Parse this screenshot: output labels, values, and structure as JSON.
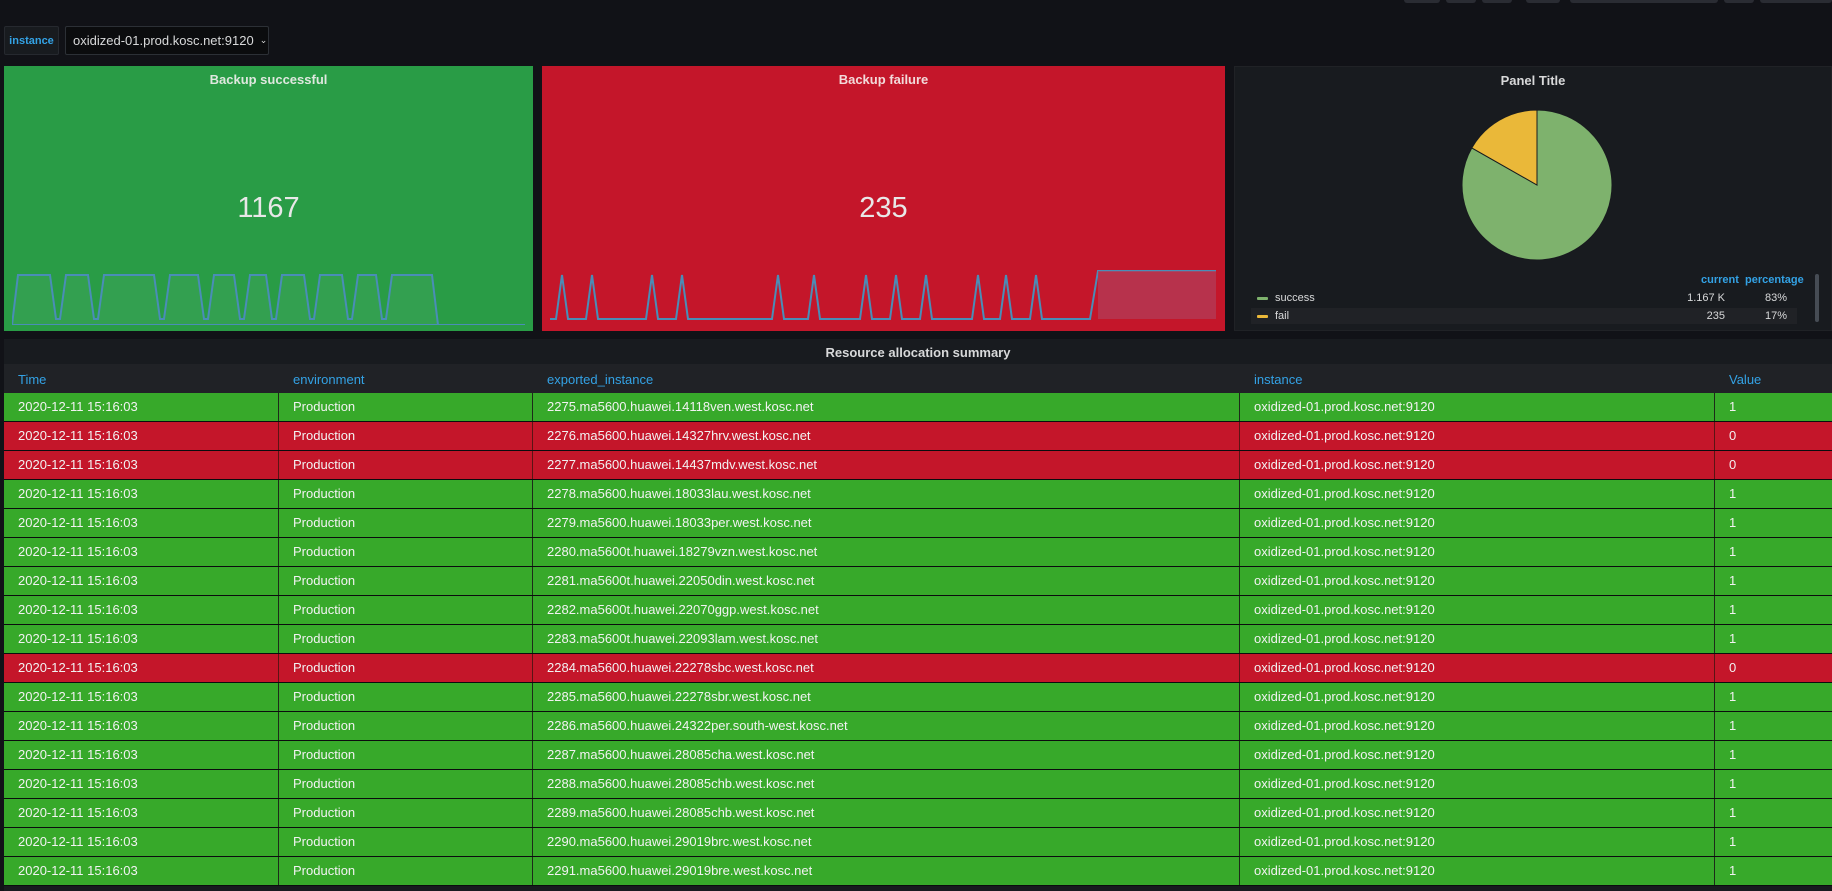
{
  "variables": {
    "label": "instance",
    "selected": "oxidized-01.prod.kosc.net:9120"
  },
  "stats": [
    {
      "title": "Backup successful",
      "value": "1167",
      "color": "#299c46"
    },
    {
      "title": "Backup failure",
      "value": "235",
      "color": "#c4162a"
    }
  ],
  "pie": {
    "title": "Panel Title",
    "legend": {
      "header_current": "current",
      "header_percentage": "percentage",
      "items": [
        {
          "name": "success",
          "current": "1.167 K",
          "percentage": "83%",
          "color": "#7eb26d"
        },
        {
          "name": "fail",
          "current": "235",
          "percentage": "17%",
          "color": "#eab839"
        }
      ]
    }
  },
  "chart_data": {
    "type": "pie",
    "title": "Panel Title",
    "categories": [
      "success",
      "fail"
    ],
    "values": [
      1167,
      235
    ],
    "colors": [
      "#7eb26d",
      "#eab839"
    ],
    "legend": "bottom"
  },
  "table": {
    "title": "Resource allocation summary",
    "columns": [
      "Time",
      "environment",
      "exported_instance",
      "instance",
      "Value"
    ],
    "rows": [
      {
        "time": "2020-12-11 15:16:03",
        "env": "Production",
        "exported": "2275.ma5600.huawei.14118ven.west.kosc.net",
        "instance": "oxidized-01.prod.kosc.net:9120",
        "value": "1"
      },
      {
        "time": "2020-12-11 15:16:03",
        "env": "Production",
        "exported": "2276.ma5600.huawei.14327hrv.west.kosc.net",
        "instance": "oxidized-01.prod.kosc.net:9120",
        "value": "0"
      },
      {
        "time": "2020-12-11 15:16:03",
        "env": "Production",
        "exported": "2277.ma5600.huawei.14437mdv.west.kosc.net",
        "instance": "oxidized-01.prod.kosc.net:9120",
        "value": "0"
      },
      {
        "time": "2020-12-11 15:16:03",
        "env": "Production",
        "exported": "2278.ma5600.huawei.18033lau.west.kosc.net",
        "instance": "oxidized-01.prod.kosc.net:9120",
        "value": "1"
      },
      {
        "time": "2020-12-11 15:16:03",
        "env": "Production",
        "exported": "2279.ma5600.huawei.18033per.west.kosc.net",
        "instance": "oxidized-01.prod.kosc.net:9120",
        "value": "1"
      },
      {
        "time": "2020-12-11 15:16:03",
        "env": "Production",
        "exported": "2280.ma5600t.huawei.18279vzn.west.kosc.net",
        "instance": "oxidized-01.prod.kosc.net:9120",
        "value": "1"
      },
      {
        "time": "2020-12-11 15:16:03",
        "env": "Production",
        "exported": "2281.ma5600t.huawei.22050din.west.kosc.net",
        "instance": "oxidized-01.prod.kosc.net:9120",
        "value": "1"
      },
      {
        "time": "2020-12-11 15:16:03",
        "env": "Production",
        "exported": "2282.ma5600t.huawei.22070ggp.west.kosc.net",
        "instance": "oxidized-01.prod.kosc.net:9120",
        "value": "1"
      },
      {
        "time": "2020-12-11 15:16:03",
        "env": "Production",
        "exported": "2283.ma5600t.huawei.22093lam.west.kosc.net",
        "instance": "oxidized-01.prod.kosc.net:9120",
        "value": "1"
      },
      {
        "time": "2020-12-11 15:16:03",
        "env": "Production",
        "exported": "2284.ma5600.huawei.22278sbc.west.kosc.net",
        "instance": "oxidized-01.prod.kosc.net:9120",
        "value": "0"
      },
      {
        "time": "2020-12-11 15:16:03",
        "env": "Production",
        "exported": "2285.ma5600.huawei.22278sbr.west.kosc.net",
        "instance": "oxidized-01.prod.kosc.net:9120",
        "value": "1"
      },
      {
        "time": "2020-12-11 15:16:03",
        "env": "Production",
        "exported": "2286.ma5600.huawei.24322per.south-west.kosc.net",
        "instance": "oxidized-01.prod.kosc.net:9120",
        "value": "1"
      },
      {
        "time": "2020-12-11 15:16:03",
        "env": "Production",
        "exported": "2287.ma5600.huawei.28085cha.west.kosc.net",
        "instance": "oxidized-01.prod.kosc.net:9120",
        "value": "1"
      },
      {
        "time": "2020-12-11 15:16:03",
        "env": "Production",
        "exported": "2288.ma5600.huawei.28085chb.west.kosc.net",
        "instance": "oxidized-01.prod.kosc.net:9120",
        "value": "1"
      },
      {
        "time": "2020-12-11 15:16:03",
        "env": "Production",
        "exported": "2289.ma5600.huawei.28085chb.west.kosc.net",
        "instance": "oxidized-01.prod.kosc.net:9120",
        "value": "1"
      },
      {
        "time": "2020-12-11 15:16:03",
        "env": "Production",
        "exported": "2290.ma5600.huawei.29019brc.west.kosc.net",
        "instance": "oxidized-01.prod.kosc.net:9120",
        "value": "1"
      },
      {
        "time": "2020-12-11 15:16:03",
        "env": "Production",
        "exported": "2291.ma5600.huawei.29019bre.west.kosc.net",
        "instance": "oxidized-01.prod.kosc.net:9120",
        "value": "1"
      }
    ]
  }
}
